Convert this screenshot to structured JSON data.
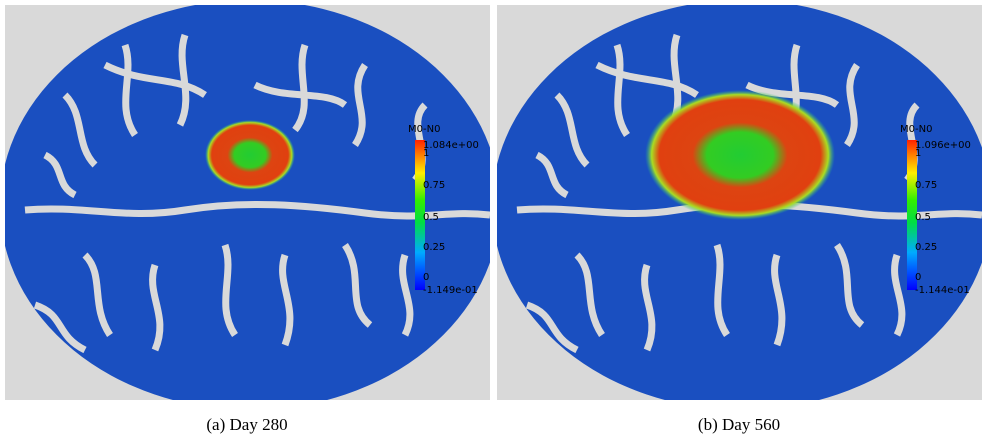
{
  "panels": [
    {
      "caption": "(a) Day 280",
      "colorbar": {
        "title": "M0-N0",
        "labels": [
          "1.084e+00",
          "1",
          "0.75",
          "0.5",
          "0.25",
          "0",
          "-1.149e-01"
        ]
      }
    },
    {
      "caption": "(b) Day 560",
      "colorbar": {
        "title": "M0-N0",
        "labels": [
          "1.096e+00",
          "1",
          "0.75",
          "0.5",
          "0.25",
          "0",
          "-1.144e-01"
        ]
      }
    }
  ]
}
